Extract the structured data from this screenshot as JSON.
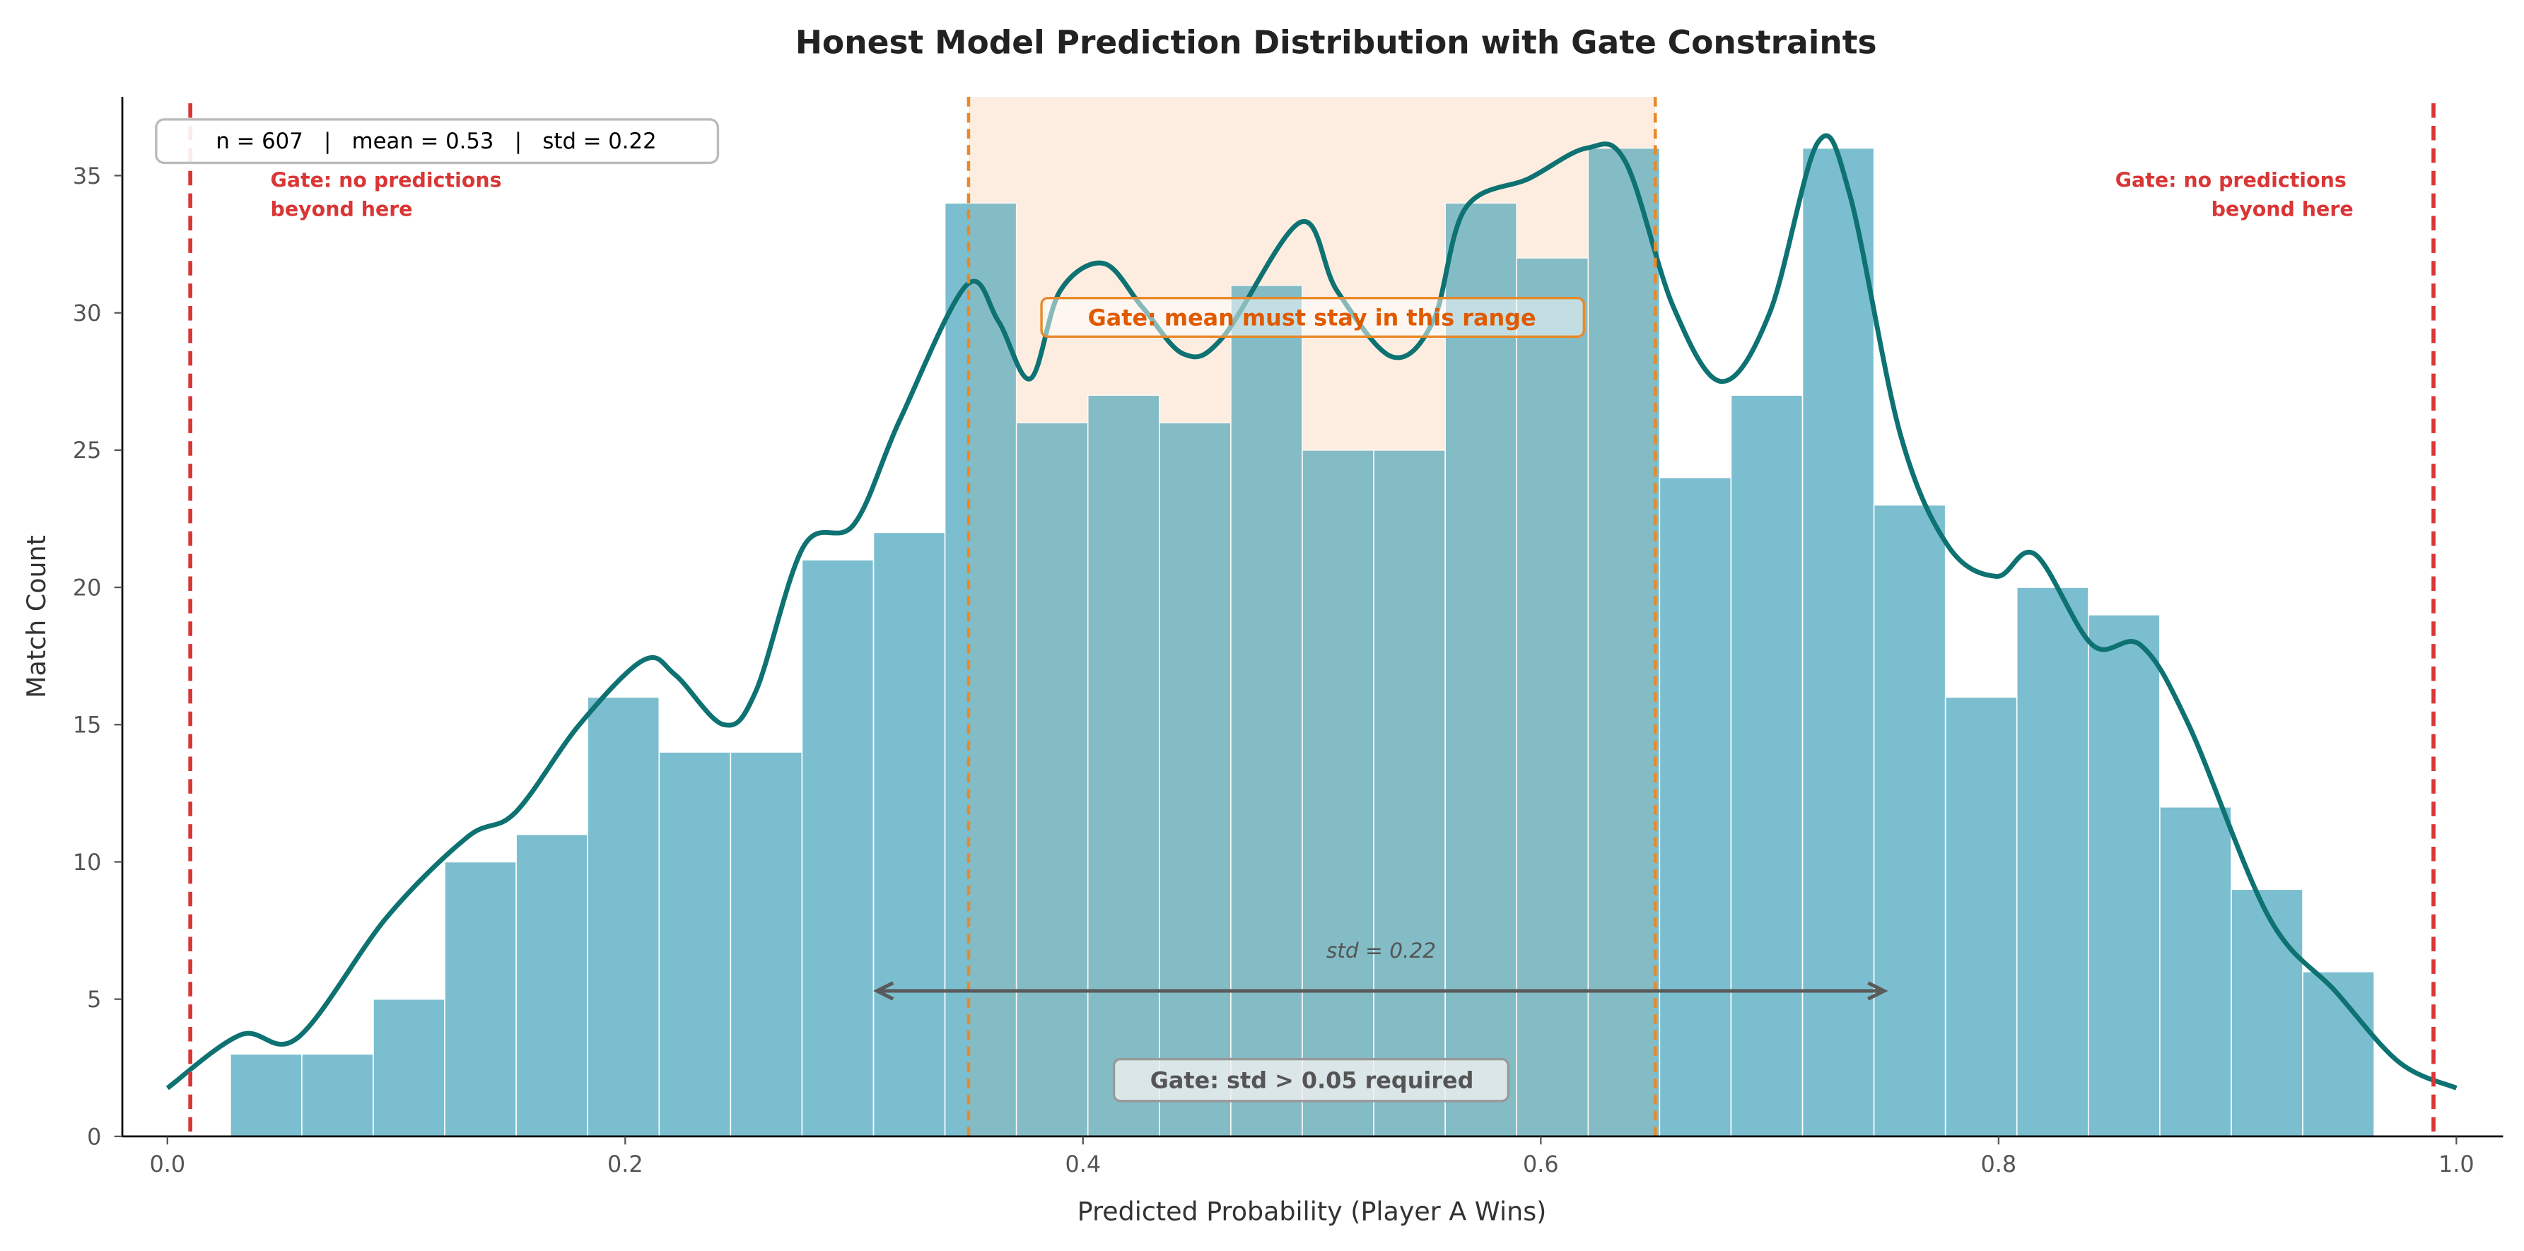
{
  "chart_data": {
    "type": "bar",
    "title": "Honest Model Prediction Distribution with Gate Constraints",
    "xlabel": "Predicted Probability (Player A Wins)",
    "ylabel": "Match Count",
    "xlim": [
      -0.02,
      1.02
    ],
    "ylim": [
      0,
      37.8
    ],
    "xticks": [
      "0.0",
      "0.2",
      "0.4",
      "0.6",
      "0.8",
      "1.0"
    ],
    "yticks": [
      "0",
      "5",
      "10",
      "15",
      "20",
      "25",
      "30",
      "35"
    ],
    "grid": false,
    "bin_start": 0.0275,
    "bin_width": 0.03122,
    "values": [
      3,
      3,
      5,
      10,
      11,
      16,
      14,
      14,
      21,
      22,
      34,
      26,
      27,
      26,
      31,
      25,
      25,
      34,
      32,
      36,
      24,
      27,
      36,
      23,
      16,
      20,
      19,
      12,
      9,
      6
    ],
    "bar_color": "#7bbecf",
    "kde": {
      "color": "#0e7272",
      "x": [
        0.0,
        0.032,
        0.057,
        0.096,
        0.131,
        0.152,
        0.18,
        0.208,
        0.222,
        0.243,
        0.257,
        0.278,
        0.3,
        0.32,
        0.349,
        0.363,
        0.377,
        0.39,
        0.409,
        0.426,
        0.444,
        0.461,
        0.495,
        0.511,
        0.535,
        0.553,
        0.567,
        0.595,
        0.62,
        0.637,
        0.658,
        0.679,
        0.7,
        0.721,
        0.735,
        0.757,
        0.778,
        0.799,
        0.816,
        0.841,
        0.862,
        0.883,
        0.918,
        0.947,
        0.975,
        1.0
      ],
      "y": [
        1.76,
        3.7,
        3.6,
        8,
        10.9,
        11.8,
        15,
        17.35,
        16.8,
        15,
        16.2,
        21.5,
        22.3,
        26.1,
        31,
        29.7,
        27.6,
        30.8,
        31.8,
        30.2,
        28.5,
        29.1,
        33.3,
        30.8,
        28.4,
        29.7,
        33.8,
        34.9,
        36,
        35.5,
        30.2,
        27.5,
        30,
        36.2,
        34.3,
        25.6,
        21.5,
        20.4,
        21.2,
        17.9,
        17.9,
        15,
        8,
        5.3,
        2.7,
        1.76
      ]
    },
    "gates": {
      "hard_lines": [
        0.01,
        0.99
      ],
      "hard_color": "#d93636",
      "hard_label": "Gate: no predictions beyond here",
      "hard_label_lines": [
        "Gate: no predictions",
        "beyond here"
      ],
      "mean_range": [
        0.35,
        0.65
      ],
      "mean_color": "#e8892a",
      "mean_label": "Gate: mean must stay in this range",
      "mean_label_color": "#e05a00",
      "std_arrow": [
        0.31,
        0.75
      ],
      "std_arrow_y": 5.3,
      "std_label": "std = 0.22",
      "std_gate_label": "Gate: std > 0.05 required"
    },
    "stats_box": "n = 607   |   mean = 0.53   |   std = 0.22"
  }
}
